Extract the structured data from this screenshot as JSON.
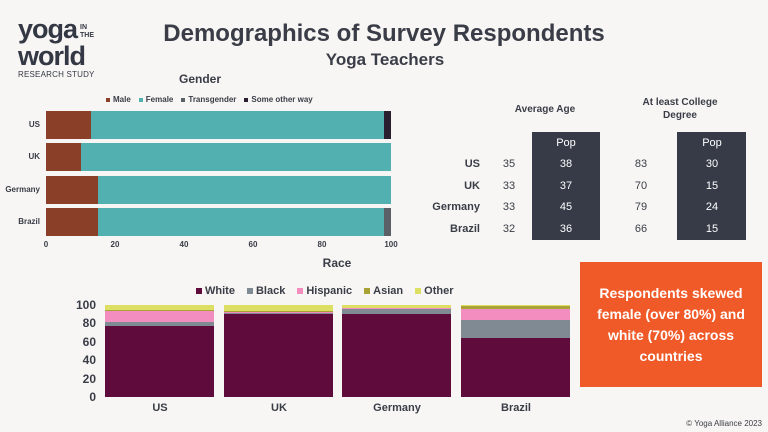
{
  "logo": {
    "line1": "yoga",
    "in_the": "IN THE",
    "line2": "world",
    "sub": "RESEARCH STUDY"
  },
  "header": {
    "title": "Demographics of Survey Respondents",
    "subtitle": "Yoga Teachers"
  },
  "colors": {
    "male": "#8a3f28",
    "female": "#52b1b0",
    "transgender": "#5b5f66",
    "other_way": "#2a1e31",
    "white": "#5f0b3b",
    "black": "#7f8a92",
    "hispanic": "#f48dbf",
    "asian": "#a9a336",
    "other": "#dcdf64",
    "callout": "#f05a28",
    "table_dark": "#363b47"
  },
  "chart_data": [
    {
      "type": "bar",
      "orientation": "horizontal",
      "stacked": true,
      "title": "Gender",
      "categories": [
        "US",
        "UK",
        "Germany",
        "Brazil"
      ],
      "series": [
        {
          "name": "Male",
          "values": [
            13,
            10,
            15,
            15
          ]
        },
        {
          "name": "Female",
          "values": [
            85,
            90,
            85,
            83
          ]
        },
        {
          "name": "Transgender",
          "values": [
            0,
            0,
            0,
            2
          ]
        },
        {
          "name": "Some other way",
          "values": [
            2,
            0,
            0,
            0
          ]
        }
      ],
      "xlim": [
        0,
        100
      ],
      "xticks": [
        "0",
        "20",
        "40",
        "60",
        "80",
        "100"
      ],
      "legend": "top"
    },
    {
      "type": "bar",
      "stacked": true,
      "title": "Race",
      "categories": [
        "US",
        "UK",
        "Germany",
        "Brazil"
      ],
      "series": [
        {
          "name": "White",
          "values": [
            77,
            90,
            90,
            64
          ]
        },
        {
          "name": "Black",
          "values": [
            5,
            1,
            6,
            20
          ]
        },
        {
          "name": "Hispanic",
          "values": [
            12,
            1,
            1,
            12
          ]
        },
        {
          "name": "Asian",
          "values": [
            1,
            2,
            0,
            3
          ]
        },
        {
          "name": "Other",
          "values": [
            5,
            6,
            3,
            1
          ]
        }
      ],
      "ylim": [
        0,
        100
      ],
      "yticks": [
        "100",
        "80",
        "60",
        "40",
        "20",
        "0"
      ],
      "legend": "top"
    }
  ],
  "table": {
    "age_header": "Average Age",
    "degree_header": "At least College Degree",
    "pop_label": "Pop",
    "rows": [
      {
        "country": "US",
        "age": "35",
        "age_pop": "38",
        "deg": "83",
        "deg_pop": "30"
      },
      {
        "country": "UK",
        "age": "33",
        "age_pop": "37",
        "deg": "70",
        "deg_pop": "15"
      },
      {
        "country": "Germany",
        "age": "33",
        "age_pop": "45",
        "deg": "79",
        "deg_pop": "24"
      },
      {
        "country": "Brazil",
        "age": "32",
        "age_pop": "36",
        "deg": "66",
        "deg_pop": "15"
      }
    ]
  },
  "callout": "Respondents skewed female (over 80%) and white (70%) across countries",
  "footer": "© Yoga Alliance 2023"
}
